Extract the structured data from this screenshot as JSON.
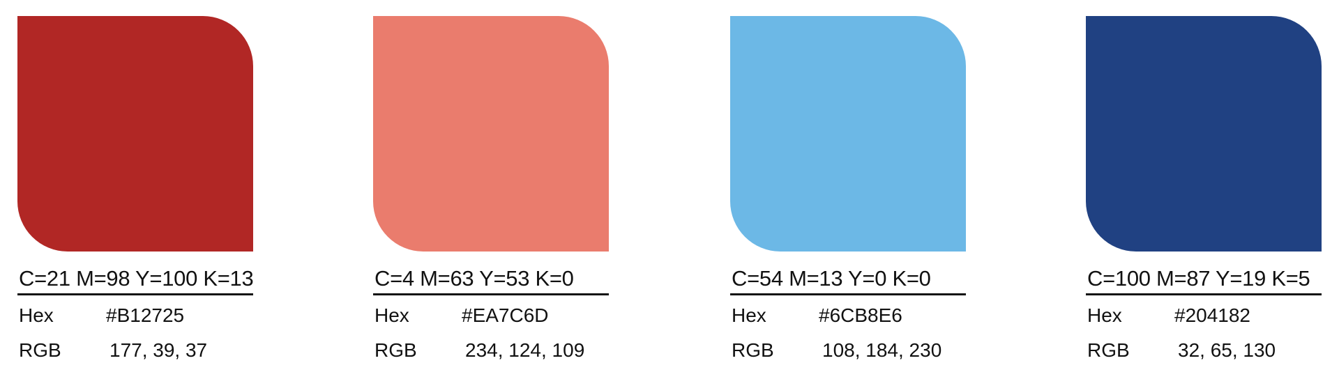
{
  "swatches": [
    {
      "cmyk": "C=21 M=98 Y=100 K=13",
      "hex_label": "Hex",
      "hex_value": "#B12725",
      "rgb_label": "RGB",
      "rgb_value": "177, 39, 37",
      "color": "#B12725"
    },
    {
      "cmyk": "C=4 M=63 Y=53 K=0",
      "hex_label": "Hex",
      "hex_value": "#EA7C6D",
      "rgb_label": "RGB",
      "rgb_value": "234, 124, 109",
      "color": "#EA7C6D"
    },
    {
      "cmyk": "C=54 M=13 Y=0 K=0",
      "hex_label": "Hex",
      "hex_value": "#6CB8E6",
      "rgb_label": "RGB",
      "rgb_value": "108, 184, 230",
      "color": "#6CB8E6"
    },
    {
      "cmyk": "C=100 M=87 Y=19 K=5",
      "hex_label": "Hex",
      "hex_value": "#204182",
      "rgb_label": "RGB",
      "rgb_value": "32, 65, 130",
      "color": "#204182"
    }
  ]
}
